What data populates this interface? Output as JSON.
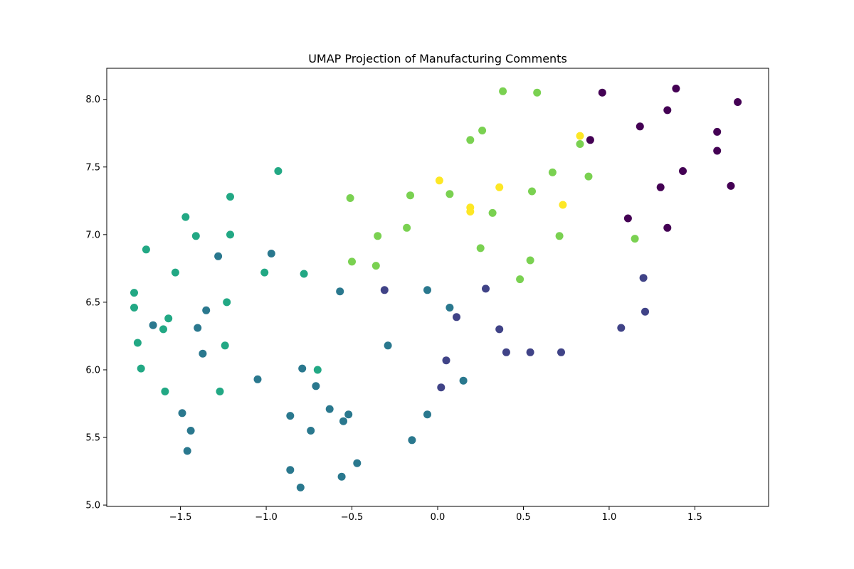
{
  "chart_data": {
    "type": "scatter",
    "title": "UMAP Projection of Manufacturing Comments",
    "xlabel": "",
    "ylabel": "",
    "xlim": [
      -1.93,
      1.93
    ],
    "ylim": [
      4.99,
      8.23
    ],
    "x_ticks": [
      -1.5,
      -1.0,
      -0.5,
      0.0,
      0.5,
      1.0,
      1.5
    ],
    "x_tick_labels": [
      "−1.5",
      "−1.0",
      "−0.5",
      "0.0",
      "0.5",
      "1.0",
      "1.5"
    ],
    "y_ticks": [
      5.0,
      5.5,
      6.0,
      6.5,
      7.0,
      7.5,
      8.0
    ],
    "y_tick_labels": [
      "5.0",
      "5.5",
      "6.0",
      "6.5",
      "7.0",
      "7.5",
      "8.0"
    ],
    "grid": false,
    "legend": "none",
    "colormap": "viridis",
    "series": [
      {
        "color": "#440154",
        "points": [
          [
            0.96,
            8.05
          ],
          [
            1.39,
            8.08
          ],
          [
            1.75,
            7.98
          ],
          [
            1.34,
            7.92
          ],
          [
            1.18,
            7.8
          ],
          [
            1.63,
            7.76
          ],
          [
            0.89,
            7.7
          ],
          [
            1.63,
            7.62
          ],
          [
            1.43,
            7.47
          ],
          [
            1.3,
            7.35
          ],
          [
            1.71,
            7.36
          ],
          [
            1.11,
            7.12
          ],
          [
            1.34,
            7.05
          ]
        ]
      },
      {
        "color": "#404387",
        "points": [
          [
            -0.31,
            6.59
          ],
          [
            0.28,
            6.6
          ],
          [
            1.2,
            6.68
          ],
          [
            0.11,
            6.39
          ],
          [
            1.21,
            6.43
          ],
          [
            0.36,
            6.3
          ],
          [
            1.07,
            6.31
          ],
          [
            0.4,
            6.13
          ],
          [
            0.54,
            6.13
          ],
          [
            0.72,
            6.13
          ],
          [
            0.05,
            6.07
          ],
          [
            0.02,
            5.87
          ]
        ]
      },
      {
        "color": "#2a788e",
        "points": [
          [
            -1.28,
            6.84
          ],
          [
            -0.97,
            6.86
          ],
          [
            -0.57,
            6.58
          ],
          [
            -0.06,
            6.59
          ],
          [
            -1.35,
            6.44
          ],
          [
            0.07,
            6.46
          ],
          [
            -1.66,
            6.33
          ],
          [
            -1.4,
            6.31
          ],
          [
            -0.29,
            6.18
          ],
          [
            -1.37,
            6.12
          ],
          [
            -0.79,
            6.01
          ],
          [
            -1.05,
            5.93
          ],
          [
            0.15,
            5.92
          ],
          [
            -0.71,
            5.88
          ],
          [
            -0.63,
            5.71
          ],
          [
            -1.49,
            5.68
          ],
          [
            -0.86,
            5.66
          ],
          [
            -0.52,
            5.67
          ],
          [
            -0.06,
            5.67
          ],
          [
            -0.55,
            5.62
          ],
          [
            -1.44,
            5.55
          ],
          [
            -0.74,
            5.55
          ],
          [
            -0.15,
            5.48
          ],
          [
            -1.46,
            5.4
          ],
          [
            -0.47,
            5.31
          ],
          [
            -0.86,
            5.26
          ],
          [
            -0.56,
            5.21
          ],
          [
            -0.8,
            5.13
          ]
        ]
      },
      {
        "color": "#22a884",
        "points": [
          [
            -0.93,
            7.47
          ],
          [
            -1.21,
            7.28
          ],
          [
            -1.47,
            7.13
          ],
          [
            -1.41,
            6.99
          ],
          [
            -1.21,
            7.0
          ],
          [
            -1.7,
            6.89
          ],
          [
            -1.53,
            6.72
          ],
          [
            -1.01,
            6.72
          ],
          [
            -0.78,
            6.71
          ],
          [
            -1.77,
            6.57
          ],
          [
            -1.23,
            6.5
          ],
          [
            -1.77,
            6.46
          ],
          [
            -1.57,
            6.38
          ],
          [
            -1.6,
            6.3
          ],
          [
            -1.75,
            6.2
          ],
          [
            -1.24,
            6.18
          ],
          [
            -1.73,
            6.01
          ],
          [
            -0.7,
            6.0
          ],
          [
            -1.59,
            5.84
          ],
          [
            -1.27,
            5.84
          ]
        ]
      },
      {
        "color": "#7ad151",
        "points": [
          [
            0.38,
            8.06
          ],
          [
            0.58,
            8.05
          ],
          [
            0.26,
            7.77
          ],
          [
            0.19,
            7.7
          ],
          [
            0.83,
            7.67
          ],
          [
            0.67,
            7.46
          ],
          [
            0.88,
            7.43
          ],
          [
            0.55,
            7.32
          ],
          [
            -0.51,
            7.27
          ],
          [
            -0.16,
            7.29
          ],
          [
            0.07,
            7.3
          ],
          [
            0.32,
            7.16
          ],
          [
            -0.18,
            7.05
          ],
          [
            -0.35,
            6.99
          ],
          [
            0.71,
            6.99
          ],
          [
            1.15,
            6.97
          ],
          [
            0.25,
            6.9
          ],
          [
            -0.5,
            6.8
          ],
          [
            0.54,
            6.81
          ],
          [
            -0.36,
            6.77
          ],
          [
            0.48,
            6.67
          ]
        ]
      },
      {
        "color": "#fde725",
        "points": [
          [
            0.83,
            7.73
          ],
          [
            0.01,
            7.4
          ],
          [
            0.36,
            7.35
          ],
          [
            0.73,
            7.22
          ],
          [
            0.19,
            7.2
          ],
          [
            0.19,
            7.17
          ]
        ]
      }
    ]
  }
}
